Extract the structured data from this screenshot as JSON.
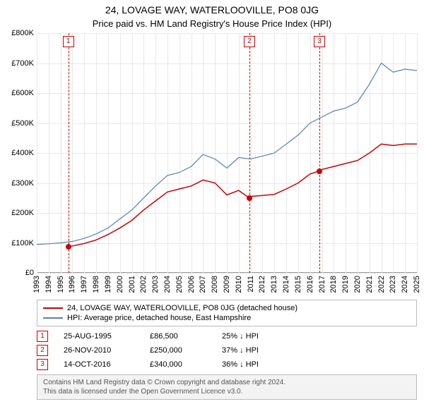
{
  "title": "24, LOVAGE WAY, WATERLOOVILLE, PO8 0JG",
  "subtitle": "Price paid vs. HM Land Registry's House Price Index (HPI)",
  "chart": {
    "type": "line",
    "background_color": "#ffffff",
    "grid_color": "#e8e8e8",
    "axis_color": "#999999",
    "label_fontsize": 11,
    "title_fontsize": 14,
    "x": {
      "min": 1993,
      "max": 2025,
      "ticks": [
        1993,
        1994,
        1995,
        1996,
        1997,
        1998,
        1999,
        2000,
        2001,
        2002,
        2003,
        2004,
        2005,
        2006,
        2007,
        2008,
        2009,
        2010,
        2011,
        2012,
        2013,
        2014,
        2015,
        2016,
        2017,
        2018,
        2019,
        2020,
        2021,
        2022,
        2023,
        2024,
        2025
      ],
      "rotation": -90
    },
    "y": {
      "min": 0,
      "max": 800000,
      "ticks": [
        0,
        100000,
        200000,
        300000,
        400000,
        500000,
        600000,
        700000,
        800000
      ],
      "tick_labels": [
        "£0",
        "£100K",
        "£200K",
        "£300K",
        "£400K",
        "£500K",
        "£600K",
        "£700K",
        "£800K"
      ]
    },
    "series": [
      {
        "key": "property",
        "label": "24, LOVAGE WAY, WATERLOOVILLE, PO8 0JG (detached house)",
        "color": "#cc0000",
        "line_width": 1.5,
        "points": [
          [
            1995.65,
            86500
          ],
          [
            1996,
            90000
          ],
          [
            1997,
            98000
          ],
          [
            1998,
            110000
          ],
          [
            1999,
            128000
          ],
          [
            2000,
            150000
          ],
          [
            2001,
            175000
          ],
          [
            2002,
            210000
          ],
          [
            2003,
            240000
          ],
          [
            2004,
            270000
          ],
          [
            2005,
            280000
          ],
          [
            2006,
            290000
          ],
          [
            2007,
            310000
          ],
          [
            2008,
            300000
          ],
          [
            2009,
            260000
          ],
          [
            2010,
            275000
          ],
          [
            2010.9,
            250000
          ],
          [
            2011,
            255000
          ],
          [
            2012,
            258000
          ],
          [
            2013,
            262000
          ],
          [
            2014,
            280000
          ],
          [
            2015,
            300000
          ],
          [
            2016,
            330000
          ],
          [
            2016.79,
            340000
          ],
          [
            2017,
            345000
          ],
          [
            2018,
            355000
          ],
          [
            2019,
            365000
          ],
          [
            2020,
            375000
          ],
          [
            2021,
            400000
          ],
          [
            2022,
            430000
          ],
          [
            2023,
            425000
          ],
          [
            2024,
            430000
          ],
          [
            2025,
            430000
          ]
        ]
      },
      {
        "key": "hpi",
        "label": "HPI: Average price, detached house, East Hampshire",
        "color": "#5b7fb5",
        "line_width": 1.2,
        "points": [
          [
            1993,
            95000
          ],
          [
            1994,
            97000
          ],
          [
            1995,
            100000
          ],
          [
            1996,
            105000
          ],
          [
            1997,
            115000
          ],
          [
            1998,
            130000
          ],
          [
            1999,
            150000
          ],
          [
            2000,
            180000
          ],
          [
            2001,
            210000
          ],
          [
            2002,
            250000
          ],
          [
            2003,
            290000
          ],
          [
            2004,
            325000
          ],
          [
            2005,
            335000
          ],
          [
            2006,
            355000
          ],
          [
            2007,
            395000
          ],
          [
            2008,
            380000
          ],
          [
            2009,
            350000
          ],
          [
            2010,
            385000
          ],
          [
            2011,
            380000
          ],
          [
            2012,
            390000
          ],
          [
            2013,
            400000
          ],
          [
            2014,
            430000
          ],
          [
            2015,
            460000
          ],
          [
            2016,
            500000
          ],
          [
            2017,
            520000
          ],
          [
            2018,
            540000
          ],
          [
            2019,
            550000
          ],
          [
            2020,
            570000
          ],
          [
            2021,
            630000
          ],
          [
            2022,
            700000
          ],
          [
            2023,
            670000
          ],
          [
            2024,
            680000
          ],
          [
            2025,
            675000
          ]
        ]
      }
    ],
    "event_lines": [
      {
        "num": "1",
        "year": 1995.65
      },
      {
        "num": "2",
        "year": 2010.9
      },
      {
        "num": "3",
        "year": 2016.79
      }
    ],
    "markers": [
      {
        "year": 1995.65,
        "value": 86500,
        "color": "#cc0000"
      },
      {
        "year": 2010.9,
        "value": 250000,
        "color": "#cc0000"
      },
      {
        "year": 2016.79,
        "value": 340000,
        "color": "#cc0000"
      }
    ]
  },
  "legend": {
    "items": [
      {
        "color": "#cc0000",
        "label_key": "chart.series.0.label"
      },
      {
        "color": "#5b7fb5",
        "label_key": "chart.series.1.label"
      }
    ]
  },
  "events_table": {
    "rows": [
      {
        "num": "1",
        "date": "25-AUG-1995",
        "price": "£86,500",
        "delta": "25% ↓ HPI"
      },
      {
        "num": "2",
        "date": "26-NOV-2010",
        "price": "£250,000",
        "delta": "37% ↓ HPI"
      },
      {
        "num": "3",
        "date": "14-OCT-2016",
        "price": "£340,000",
        "delta": "36% ↓ HPI"
      }
    ]
  },
  "attribution": {
    "line1": "Contains HM Land Registry data © Crown copyright and database right 2024.",
    "line2": "This data is licensed under the Open Government Licence v3.0."
  }
}
